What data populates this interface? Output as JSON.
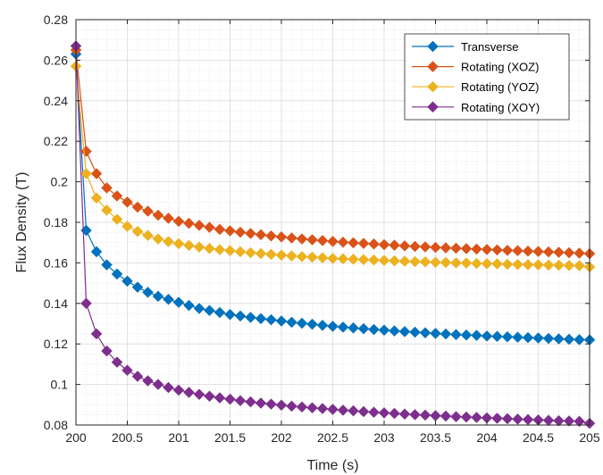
{
  "chart_data": {
    "type": "line",
    "xlabel": "Time (s)",
    "ylabel": "Flux Density (T)",
    "xlim": [
      200,
      205
    ],
    "ylim": [
      0.08,
      0.28
    ],
    "xticks": [
      200,
      200.5,
      201,
      201.5,
      202,
      202.5,
      203,
      203.5,
      204,
      204.5,
      205
    ],
    "xtick_labels": [
      "200",
      "200.5",
      "201",
      "201.5",
      "202",
      "202.5",
      "203",
      "203.5",
      "204",
      "204.5",
      "205"
    ],
    "yticks": [
      0.08,
      0.1,
      0.12,
      0.14,
      0.16,
      0.18,
      0.2,
      0.22,
      0.24,
      0.26,
      0.28
    ],
    "ytick_labels": [
      "0.08",
      "0.1",
      "0.12",
      "0.14",
      "0.16",
      "0.18",
      "0.2",
      "0.22",
      "0.24",
      "0.26",
      "0.28"
    ],
    "grid": "major-and-minor",
    "legend_position": "top-right",
    "marker": "diamond",
    "x": [
      200,
      200.1,
      200.2,
      200.3,
      200.4,
      200.5,
      200.6,
      200.7,
      200.8,
      200.9,
      201,
      201.1,
      201.2,
      201.3,
      201.4,
      201.5,
      201.6,
      201.7,
      201.8,
      201.9,
      202,
      202.1,
      202.2,
      202.3,
      202.4,
      202.5,
      202.6,
      202.7,
      202.8,
      202.9,
      203,
      203.1,
      203.2,
      203.3,
      203.4,
      203.5,
      203.6,
      203.7,
      203.8,
      203.9,
      204,
      204.1,
      204.2,
      204.3,
      204.4,
      204.5,
      204.6,
      204.7,
      204.8,
      204.9,
      205
    ],
    "series": [
      {
        "name": "Transverse",
        "color": "#0072BD",
        "values": [
          0.263,
          0.176,
          0.1655,
          0.159,
          0.1545,
          0.151,
          0.148,
          0.1455,
          0.1435,
          0.142,
          0.1405,
          0.139,
          0.1375,
          0.1365,
          0.1355,
          0.1345,
          0.1338,
          0.1331,
          0.1325,
          0.1319,
          0.1313,
          0.1307,
          0.1302,
          0.1297,
          0.1292,
          0.1287,
          0.1283,
          0.1279,
          0.1275,
          0.1271,
          0.1268,
          0.1264,
          0.1261,
          0.1258,
          0.1255,
          0.1252,
          0.1249,
          0.1246,
          0.1244,
          0.1242,
          0.1239,
          0.1237,
          0.1235,
          0.1233,
          0.1231,
          0.1229,
          0.1227,
          0.1225,
          0.1223,
          0.1221,
          0.122
        ]
      },
      {
        "name": "Rotating (XOZ)",
        "color": "#D95319",
        "values": [
          0.265,
          0.215,
          0.204,
          0.197,
          0.193,
          0.19,
          0.1875,
          0.1855,
          0.1835,
          0.182,
          0.1805,
          0.1795,
          0.1785,
          0.1775,
          0.1765,
          0.1758,
          0.1751,
          0.1745,
          0.1739,
          0.1733,
          0.1728,
          0.1723,
          0.1718,
          0.1714,
          0.171,
          0.1706,
          0.1702,
          0.1699,
          0.1696,
          0.1693,
          0.169,
          0.1687,
          0.1684,
          0.1681,
          0.1679,
          0.1676,
          0.1674,
          0.1672,
          0.167,
          0.1668,
          0.1666,
          0.1664,
          0.1662,
          0.166,
          0.1658,
          0.1656,
          0.1654,
          0.1652,
          0.165,
          0.1648,
          0.1645
        ]
      },
      {
        "name": "Rotating (YOZ)",
        "color": "#EDB120",
        "values": [
          0.257,
          0.204,
          0.192,
          0.186,
          0.1815,
          0.178,
          0.1755,
          0.1735,
          0.1718,
          0.1705,
          0.1695,
          0.1686,
          0.1678,
          0.1671,
          0.1665,
          0.166,
          0.1655,
          0.165,
          0.1646,
          0.1642,
          0.1638,
          0.1634,
          0.1631,
          0.1628,
          0.1625,
          0.1622,
          0.162,
          0.1618,
          0.1616,
          0.1614,
          0.1612,
          0.161,
          0.1608,
          0.1606,
          0.1605,
          0.1603,
          0.1602,
          0.16,
          0.1599,
          0.1597,
          0.1596,
          0.1595,
          0.1593,
          0.1592,
          0.1591,
          0.159,
          0.1589,
          0.1588,
          0.1587,
          0.1586,
          0.158
        ]
      },
      {
        "name": "Rotating (XOY)",
        "color": "#7E2F8E",
        "values": [
          0.267,
          0.14,
          0.125,
          0.1165,
          0.111,
          0.107,
          0.104,
          0.1018,
          0.1,
          0.0985,
          0.0972,
          0.0961,
          0.0951,
          0.0942,
          0.0934,
          0.0927,
          0.092,
          0.0914,
          0.0908,
          0.0903,
          0.0898,
          0.0893,
          0.0889,
          0.0885,
          0.0881,
          0.0877,
          0.0873,
          0.087,
          0.0866,
          0.0863,
          0.086,
          0.0857,
          0.0854,
          0.0851,
          0.0849,
          0.0846,
          0.0844,
          0.0841,
          0.0839,
          0.0837,
          0.0835,
          0.0833,
          0.0831,
          0.0829,
          0.0827,
          0.0825,
          0.0823,
          0.0821,
          0.082,
          0.0818,
          0.0808
        ]
      }
    ]
  }
}
